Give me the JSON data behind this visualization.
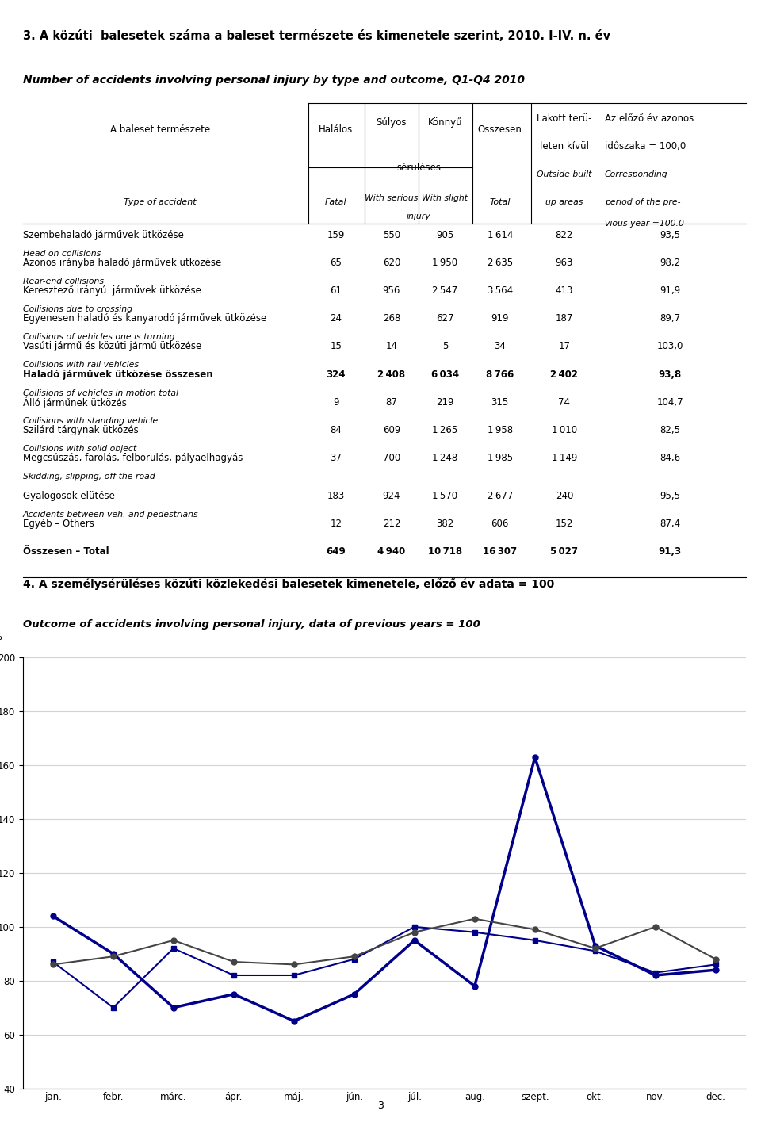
{
  "title1": "3. A közúti  balesetek száma a baleset természete és kimenetele szerint, 2010. I-IV. n. év",
  "title2": "Number of accidents involving personal injury by type and outcome, Q1-Q4 2010",
  "rows": [
    {
      "hu": "Szembehaladó járművek ütközése",
      "en": "Head on collisions",
      "fatal": 159,
      "serious": 550,
      "slight": 905,
      "total": 1614,
      "outside": 822,
      "prev": "93,5",
      "bold": false,
      "extra_space": false
    },
    {
      "hu": "Azonos irányba haladó járművek ütközése",
      "en": "Rear-end collisions",
      "fatal": 65,
      "serious": 620,
      "slight": 1950,
      "total": 2635,
      "outside": 963,
      "prev": "98,2",
      "bold": false,
      "extra_space": false
    },
    {
      "hu": "Keresztező irányú  járművek ütközése",
      "en": "Collisions due to crossing",
      "fatal": 61,
      "serious": 956,
      "slight": 2547,
      "total": 3564,
      "outside": 413,
      "prev": "91,9",
      "bold": false,
      "extra_space": false
    },
    {
      "hu": "Egyenesen haladó és kanyarodó járművek ütközése",
      "en": "Collisions of vehicles one is turning",
      "fatal": 24,
      "serious": 268,
      "slight": 627,
      "total": 919,
      "outside": 187,
      "prev": "89,7",
      "bold": false,
      "extra_space": false
    },
    {
      "hu": "Vasúti jármű és közúti jármű ütközése",
      "en": "Collisions with rail vehicles",
      "fatal": 15,
      "serious": 14,
      "slight": 5,
      "total": 34,
      "outside": 17,
      "prev": "103,0",
      "bold": false,
      "extra_space": false
    },
    {
      "hu": "Haladó járművek ütközése összesen",
      "en": "Collisions of vehicles in motion total",
      "fatal": 324,
      "serious": 2408,
      "slight": 6034,
      "total": 8766,
      "outside": 2402,
      "prev": "93,8",
      "bold": true,
      "extra_space": false
    },
    {
      "hu": "Álló járműnek ütközés",
      "en": "Collisions with standing vehicle",
      "fatal": 9,
      "serious": 87,
      "slight": 219,
      "total": 315,
      "outside": 74,
      "prev": "104,7",
      "bold": false,
      "extra_space": false
    },
    {
      "hu": "Szilárd tárgynak ütközés",
      "en": "Collisions with solid object",
      "fatal": 84,
      "serious": 609,
      "slight": 1265,
      "total": 1958,
      "outside": 1010,
      "prev": "82,5",
      "bold": false,
      "extra_space": false
    },
    {
      "hu": "Megcsúszás, farolás, felborulás, pályaelhagyás",
      "en": "Skidding, slipping, off the road",
      "fatal": 37,
      "serious": 700,
      "slight": 1248,
      "total": 1985,
      "outside": 1149,
      "prev": "84,6",
      "bold": false,
      "extra_space": true
    },
    {
      "hu": "Gyalogosok elütése",
      "en": "Accidents between veh. and pedestrians",
      "fatal": 183,
      "serious": 924,
      "slight": 1570,
      "total": 2677,
      "outside": 240,
      "prev": "95,5",
      "bold": false,
      "extra_space": false
    },
    {
      "hu": "Egyéb – Others",
      "en": null,
      "fatal": 12,
      "serious": 212,
      "slight": 382,
      "total": 606,
      "outside": 152,
      "prev": "87,4",
      "bold": false,
      "extra_space": false
    },
    {
      "hu": "Összesen – Total",
      "en": null,
      "fatal": 649,
      "serious": 4940,
      "slight": 10718,
      "total": 16307,
      "outside": 5027,
      "prev": "91,3",
      "bold": true,
      "extra_space": false
    }
  ],
  "chart_title1": "4. A személysérüléses közúti közlekedési balesetek kimenetele, előző év adata = 100",
  "chart_title2": "Outcome of accidents involving personal injury, data of previous years = 100",
  "chart_ylabel": "%",
  "chart_xticklabels": [
    "jan.",
    "febr.",
    "márc.",
    "ápr.",
    "máj.",
    "jún.",
    "júl.",
    "aug.",
    "szept.",
    "okt.",
    "nov.",
    "dec."
  ],
  "halalos": [
    104,
    90,
    70,
    75,
    65,
    75,
    95,
    78,
    163,
    93,
    82,
    84
  ],
  "sulyos": [
    87,
    70,
    92,
    82,
    82,
    88,
    100,
    98,
    95,
    91,
    83,
    86
  ],
  "konnyu": [
    86,
    89,
    95,
    87,
    86,
    89,
    98,
    103,
    99,
    92,
    100,
    88
  ],
  "ylim": [
    40,
    200
  ],
  "yticks": [
    40,
    60,
    80,
    100,
    120,
    140,
    160,
    180,
    200
  ],
  "page_number": "3",
  "dark_blue": "#00008B",
  "dark_gray": "#444444"
}
